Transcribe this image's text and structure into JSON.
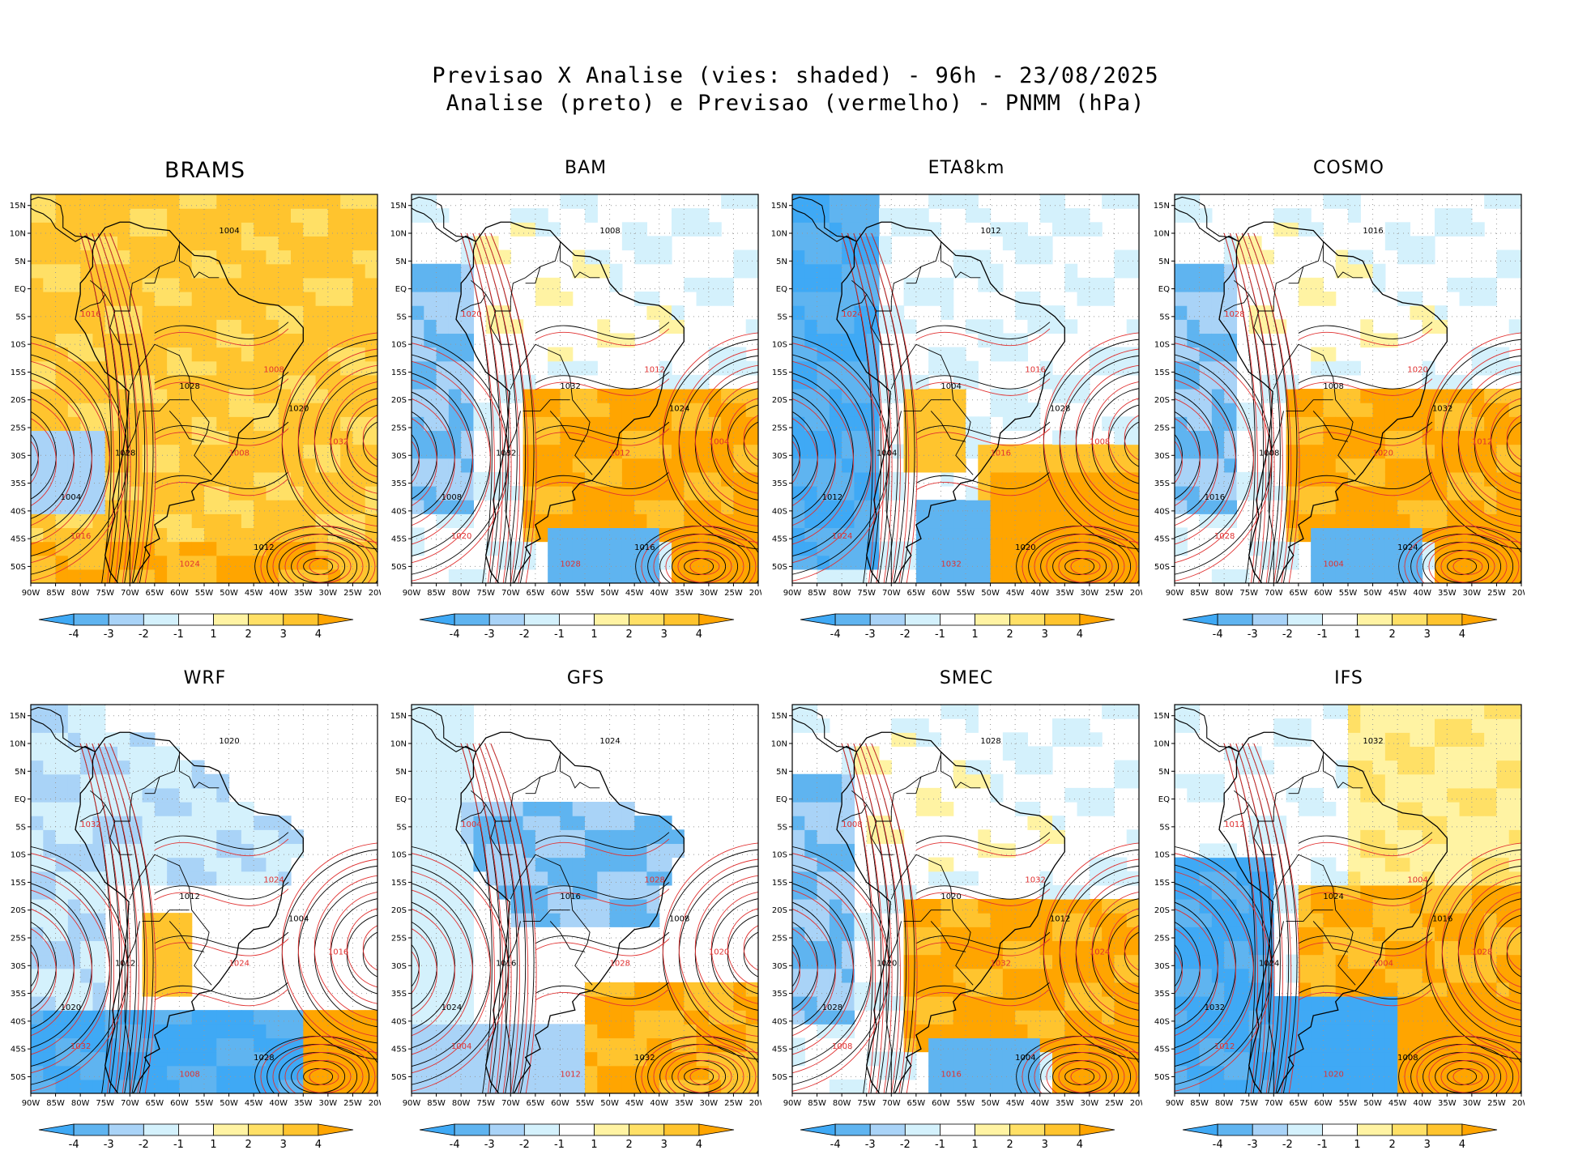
{
  "title": {
    "line1": "Previsao X Analise (vies: shaded) - 96h - 23/08/2025",
    "line2": "Analise (preto) e Previsao (vermelho) - PNMM (hPa)"
  },
  "lat_labels": [
    "15N",
    "10N",
    "5N",
    "EQ",
    "5S",
    "10S",
    "15S",
    "20S",
    "25S",
    "30S",
    "35S",
    "40S",
    "45S",
    "50S"
  ],
  "lon_labels": [
    "90W",
    "85W",
    "80W",
    "75W",
    "70W",
    "65W",
    "60W",
    "55W",
    "50W",
    "45W",
    "40W",
    "35W",
    "30W",
    "25W",
    "20W"
  ],
  "colorbar": {
    "ticks": [
      "-4",
      "-3",
      "-2",
      "-1",
      "1",
      "2",
      "3",
      "4"
    ],
    "colors": [
      "#3fa9f5",
      "#5fb4f0",
      "#a9d3f7",
      "#d4f1fc",
      "#ffffff",
      "#fff3a3",
      "#ffe066",
      "#ffc42e",
      "#ffa500"
    ]
  },
  "colors": {
    "analysis": "#000000",
    "forecast": "#e03030",
    "grid": "#999999"
  },
  "panels": [
    {
      "name": "BRAMS",
      "bias": "warm"
    },
    {
      "name": "BAM",
      "bias": "mixed"
    },
    {
      "name": "ETA8km",
      "bias": "cold-west"
    },
    {
      "name": "COSMO",
      "bias": "mixed"
    },
    {
      "name": "WRF",
      "bias": "cold"
    },
    {
      "name": "GFS",
      "bias": "cold-center"
    },
    {
      "name": "SMEC",
      "bias": "mixed"
    },
    {
      "name": "IFS",
      "bias": "strong-cold-west"
    }
  ],
  "isobar_labels": [
    "1004",
    "1008",
    "1012",
    "1016",
    "1020",
    "1024",
    "1028",
    "1032"
  ]
}
